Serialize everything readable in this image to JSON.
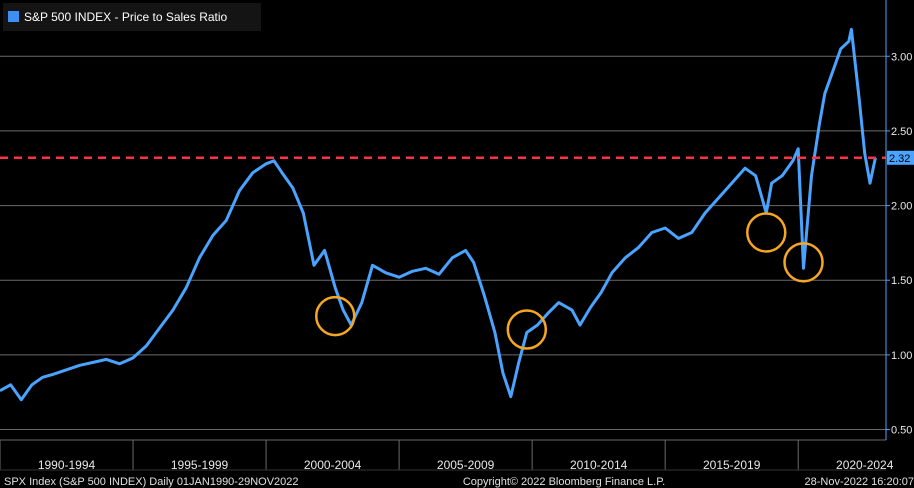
{
  "chart_data": {
    "type": "line",
    "title": "",
    "legend": {
      "label": "S&P 500 INDEX - Price to Sales Ratio",
      "placement": "top-left",
      "color": "#3d8ef5"
    },
    "series": [
      {
        "name": "S&P 500 INDEX - Price to Sales Ratio",
        "color": "#4aa3ff",
        "x": [
          1990.0,
          1990.4,
          1990.8,
          1991.2,
          1991.6,
          1992.0,
          1992.5,
          1993.0,
          1993.5,
          1994.0,
          1994.5,
          1995.0,
          1995.5,
          1996.0,
          1996.5,
          1997.0,
          1997.5,
          1998.0,
          1998.5,
          1999.0,
          1999.5,
          2000.0,
          2000.3,
          2000.6,
          2001.0,
          2001.4,
          2001.8,
          2002.2,
          2002.6,
          2002.9,
          2003.2,
          2003.6,
          2004.0,
          2004.5,
          2005.0,
          2005.5,
          2006.0,
          2006.5,
          2007.0,
          2007.5,
          2007.8,
          2008.2,
          2008.6,
          2008.9,
          2009.2,
          2009.5,
          2009.8,
          2010.2,
          2010.6,
          2011.0,
          2011.5,
          2011.8,
          2012.2,
          2012.6,
          2013.0,
          2013.5,
          2014.0,
          2014.5,
          2015.0,
          2015.5,
          2016.0,
          2016.5,
          2017.0,
          2017.5,
          2018.0,
          2018.4,
          2018.8,
          2019.0,
          2019.4,
          2019.8,
          2020.0,
          2020.2,
          2020.5,
          2020.8,
          2021.0,
          2021.3,
          2021.6,
          2021.9,
          2022.0,
          2022.3,
          2022.5,
          2022.7,
          2022.9
        ],
        "values": [
          0.76,
          0.8,
          0.7,
          0.8,
          0.85,
          0.87,
          0.9,
          0.93,
          0.95,
          0.97,
          0.94,
          0.98,
          1.06,
          1.18,
          1.3,
          1.45,
          1.65,
          1.8,
          1.9,
          2.1,
          2.22,
          2.28,
          2.3,
          2.22,
          2.12,
          1.95,
          1.6,
          1.7,
          1.45,
          1.3,
          1.2,
          1.35,
          1.6,
          1.55,
          1.52,
          1.56,
          1.58,
          1.54,
          1.65,
          1.7,
          1.62,
          1.4,
          1.15,
          0.88,
          0.72,
          0.95,
          1.15,
          1.2,
          1.28,
          1.35,
          1.3,
          1.2,
          1.32,
          1.42,
          1.55,
          1.65,
          1.72,
          1.82,
          1.85,
          1.78,
          1.82,
          1.95,
          2.05,
          2.15,
          2.25,
          2.2,
          1.95,
          2.15,
          2.2,
          2.3,
          2.38,
          1.58,
          2.2,
          2.55,
          2.75,
          2.9,
          3.05,
          3.1,
          3.18,
          2.7,
          2.35,
          2.15,
          2.32
        ]
      }
    ],
    "reference_line": {
      "value": 2.32,
      "label": "2.32",
      "color": "#ff3344",
      "style": "dashed"
    },
    "annotations": [
      {
        "type": "circle",
        "x": 2002.6,
        "y": 1.26,
        "color": "#f5a623"
      },
      {
        "type": "circle",
        "x": 2009.8,
        "y": 1.17,
        "color": "#f5a623"
      },
      {
        "type": "circle",
        "x": 2018.8,
        "y": 1.82,
        "color": "#f5a623"
      },
      {
        "type": "circle",
        "x": 2020.2,
        "y": 1.62,
        "color": "#f5a623"
      }
    ],
    "xlim": [
      1990.0,
      2023.3
    ],
    "ylim": [
      0.43,
      3.35
    ],
    "yticks": [
      0.5,
      1.0,
      1.5,
      2.0,
      2.5,
      3.0
    ],
    "ytick_labels": [
      "0.50",
      "1.00",
      "1.50",
      "2.00",
      "2.50",
      "3.00"
    ],
    "x_period_labels": [
      "1990-1994",
      "1995-1999",
      "2000-2004",
      "2005-2009",
      "2010-2014",
      "2015-2019",
      "2020-2024"
    ],
    "x_period_bounds": [
      1990,
      1995,
      2000,
      2005,
      2010,
      2015,
      2020,
      2025
    ],
    "grid": true,
    "yaxis_side": "right"
  },
  "footer": {
    "left": "SPX Index (S&P 500 INDEX)  Daily 01JAN1990-29NOV2022",
    "center": "Copyright© 2022 Bloomberg Finance L.P.",
    "right": "28-Nov-2022 16:20:07"
  },
  "colors": {
    "background": "#000000",
    "grid": "#6a6a6a",
    "axis": "#4aa3ff",
    "annotation": "#f5a623"
  }
}
